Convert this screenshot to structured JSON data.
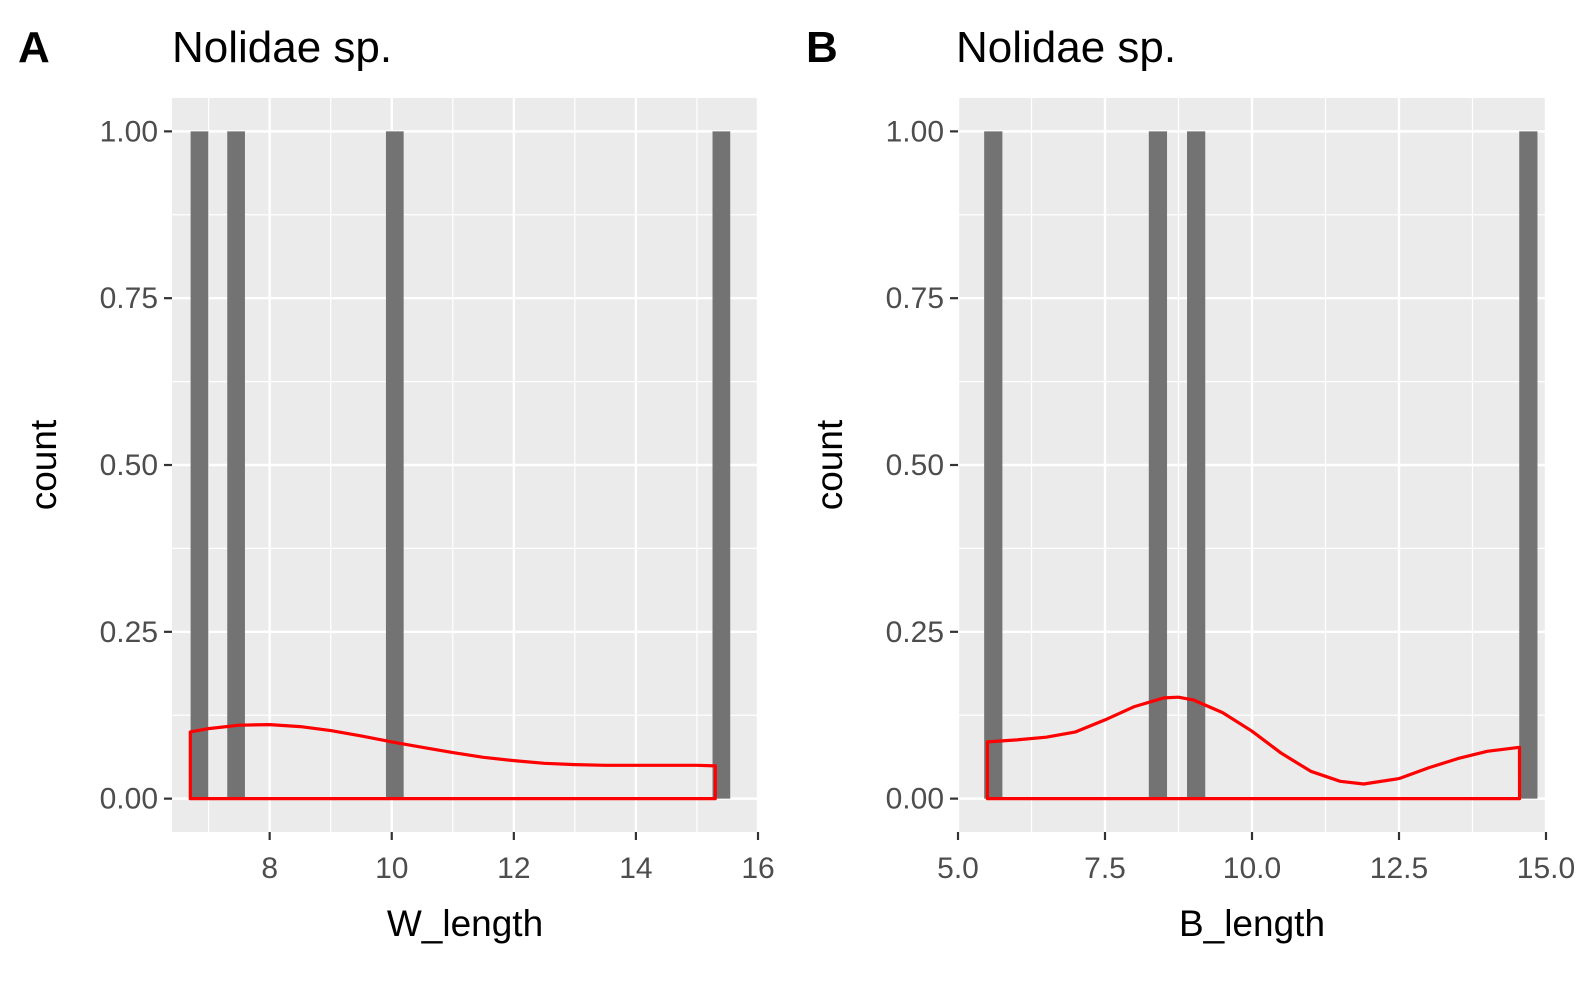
{
  "chart_data": [
    {
      "type": "bar",
      "panel_label": "A",
      "title": "Nolidae sp.",
      "xlabel": "W_length",
      "ylabel": "count",
      "xlim": [
        6.4,
        16.0
      ],
      "ylim": [
        -0.05,
        1.05
      ],
      "x_ticks": [
        8,
        10,
        12,
        14,
        16
      ],
      "x_tick_labels": [
        "8",
        "10",
        "12",
        "14",
        "16"
      ],
      "y_ticks": [
        0,
        0.25,
        0.5,
        0.75,
        1.0
      ],
      "y_tick_labels": [
        "0.00",
        "0.25",
        "0.50",
        "0.75",
        "1.00"
      ],
      "bar_color": "#737373",
      "panel_bg": "#ebebeb",
      "grid": true,
      "bin_width": 0.29,
      "bars": [
        {
          "x": 6.85,
          "count": 1
        },
        {
          "x": 7.45,
          "count": 1
        },
        {
          "x": 10.05,
          "count": 1
        },
        {
          "x": 15.4,
          "count": 1
        }
      ],
      "density": {
        "color": "#ff0000",
        "x_range": [
          6.7,
          15.3
        ],
        "points": [
          [
            6.7,
            0.1
          ],
          [
            7.0,
            0.105
          ],
          [
            7.5,
            0.11
          ],
          [
            8.0,
            0.111
          ],
          [
            8.5,
            0.108
          ],
          [
            9.0,
            0.102
          ],
          [
            9.5,
            0.094
          ],
          [
            10.0,
            0.085
          ],
          [
            10.5,
            0.077
          ],
          [
            11.0,
            0.069
          ],
          [
            11.5,
            0.062
          ],
          [
            12.0,
            0.057
          ],
          [
            12.5,
            0.053
          ],
          [
            13.0,
            0.051
          ],
          [
            13.5,
            0.05
          ],
          [
            14.0,
            0.05
          ],
          [
            14.5,
            0.05
          ],
          [
            15.0,
            0.05
          ],
          [
            15.3,
            0.049
          ]
        ]
      }
    },
    {
      "type": "bar",
      "panel_label": "B",
      "title": "Nolidae sp.",
      "xlabel": "B_length",
      "ylabel": "count",
      "xlim": [
        5.0,
        15.0
      ],
      "ylim": [
        -0.05,
        1.05
      ],
      "x_ticks": [
        5.0,
        7.5,
        10.0,
        12.5,
        15.0
      ],
      "x_tick_labels": [
        "5.0",
        "7.5",
        "10.0",
        "12.5",
        "15.0"
      ],
      "y_ticks": [
        0,
        0.25,
        0.5,
        0.75,
        1.0
      ],
      "y_tick_labels": [
        "0.00",
        "0.25",
        "0.50",
        "0.75",
        "1.00"
      ],
      "bar_color": "#737373",
      "panel_bg": "#ebebeb",
      "grid": true,
      "bin_width": 0.31,
      "bars": [
        {
          "x": 5.6,
          "count": 1
        },
        {
          "x": 8.4,
          "count": 1
        },
        {
          "x": 9.05,
          "count": 1
        },
        {
          "x": 14.7,
          "count": 1
        }
      ],
      "density": {
        "color": "#ff0000",
        "x_range": [
          5.5,
          14.55
        ],
        "points": [
          [
            5.5,
            0.085
          ],
          [
            6.0,
            0.088
          ],
          [
            6.5,
            0.092
          ],
          [
            7.0,
            0.1
          ],
          [
            7.5,
            0.118
          ],
          [
            8.0,
            0.138
          ],
          [
            8.5,
            0.151
          ],
          [
            8.75,
            0.152
          ],
          [
            9.0,
            0.148
          ],
          [
            9.5,
            0.129
          ],
          [
            10.0,
            0.101
          ],
          [
            10.5,
            0.068
          ],
          [
            11.0,
            0.041
          ],
          [
            11.5,
            0.026
          ],
          [
            11.9,
            0.022
          ],
          [
            12.5,
            0.03
          ],
          [
            13.0,
            0.046
          ],
          [
            13.5,
            0.06
          ],
          [
            14.0,
            0.071
          ],
          [
            14.55,
            0.077
          ]
        ]
      }
    }
  ]
}
